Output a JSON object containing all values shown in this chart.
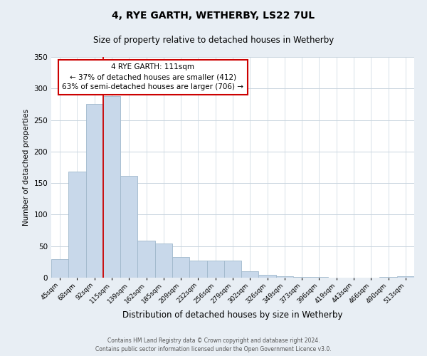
{
  "title": "4, RYE GARTH, WETHERBY, LS22 7UL",
  "subtitle": "Size of property relative to detached houses in Wetherby",
  "xlabel": "Distribution of detached houses by size in Wetherby",
  "ylabel": "Number of detached properties",
  "bar_color": "#c8d8ea",
  "bar_edge_color": "#a0b8cc",
  "marker_line_color": "#cc0000",
  "categories": [
    "45sqm",
    "68sqm",
    "92sqm",
    "115sqm",
    "139sqm",
    "162sqm",
    "185sqm",
    "209sqm",
    "232sqm",
    "256sqm",
    "279sqm",
    "302sqm",
    "326sqm",
    "349sqm",
    "373sqm",
    "396sqm",
    "419sqm",
    "443sqm",
    "466sqm",
    "490sqm",
    "513sqm"
  ],
  "values": [
    29,
    168,
    275,
    288,
    162,
    59,
    54,
    33,
    27,
    27,
    27,
    10,
    5,
    2,
    1,
    1,
    0,
    0,
    0,
    1,
    2
  ],
  "ylim": [
    0,
    350
  ],
  "yticks": [
    0,
    50,
    100,
    150,
    200,
    250,
    300,
    350
  ],
  "annotation_title": "4 RYE GARTH: 111sqm",
  "annotation_line1": "← 37% of detached houses are smaller (412)",
  "annotation_line2": "63% of semi-detached houses are larger (706) →",
  "annotation_box_color": "white",
  "annotation_box_edge_color": "#cc0000",
  "footer_line1": "Contains HM Land Registry data © Crown copyright and database right 2024.",
  "footer_line2": "Contains public sector information licensed under the Open Government Licence v3.0.",
  "background_color": "#e8eef4",
  "plot_bg_color": "white",
  "grid_color": "#c8d4de"
}
